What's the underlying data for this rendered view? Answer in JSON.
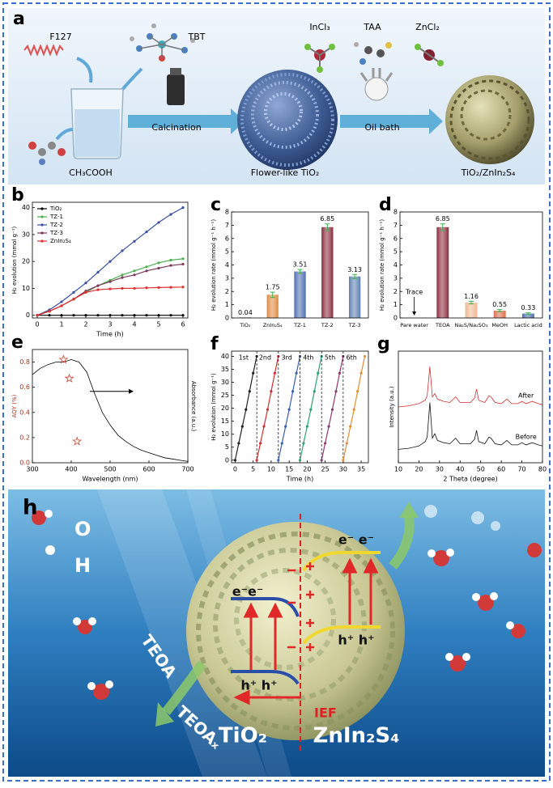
{
  "panel_a": {
    "label": "a",
    "reagents": [
      "F127",
      "TBT",
      "CH₃COOH",
      "InCl₃",
      "TAA",
      "ZnCl₂"
    ],
    "steps": [
      "Calcination",
      "Oil bath"
    ],
    "products": [
      "Flower-like TiO₂",
      "TiO₂/ZnIn₂S₄"
    ]
  },
  "chart_data": [
    {
      "type": "line",
      "label": "b",
      "x": [
        0,
        0.5,
        1,
        1.5,
        2,
        2.5,
        3,
        3.5,
        4,
        4.5,
        5,
        5.5,
        6
      ],
      "xlim": [
        -0.2,
        6.2
      ],
      "xticks": [
        0,
        1,
        2,
        3,
        4,
        5,
        6
      ],
      "ylim": [
        -1,
        42
      ],
      "yticks": [
        0,
        10,
        20,
        30,
        40
      ],
      "xlabel": "Time (h)",
      "ylabel": "H₂ evolution (mmol g⁻¹)",
      "legend": "upper left",
      "markers": true,
      "series": [
        {
          "name": "TiO₂",
          "color": "#000000",
          "values": [
            0,
            0,
            0,
            0,
            0,
            0,
            0,
            0,
            0,
            0,
            0,
            0,
            0
          ]
        },
        {
          "name": "TZ-1",
          "color": "#4cb050",
          "values": [
            0,
            1.5,
            3.5,
            6,
            8.5,
            11,
            13,
            15,
            16.5,
            18,
            19.5,
            20.5,
            21
          ]
        },
        {
          "name": "TZ-2",
          "color": "#3b4fa0",
          "values": [
            0,
            2,
            5,
            8.5,
            12,
            16,
            20,
            24,
            27.5,
            31,
            34.5,
            37.5,
            40
          ]
        },
        {
          "name": "TZ-3",
          "color": "#7a3b5a",
          "values": [
            0,
            1.5,
            3.5,
            6,
            9,
            11,
            12.5,
            14,
            15,
            16.5,
            17.5,
            18.5,
            19
          ]
        },
        {
          "name": "ZnIn₂S₄",
          "color": "#e03030",
          "values": [
            0,
            1.5,
            3.5,
            6,
            8.5,
            9.5,
            9.8,
            10,
            10,
            10.2,
            10.3,
            10.4,
            10.5
          ]
        }
      ]
    },
    {
      "type": "bar",
      "label": "c",
      "categories": [
        "TiO₂",
        "ZnIn₂S₄",
        "TZ-1",
        "TZ-2",
        "TZ-3"
      ],
      "values": [
        0.04,
        1.75,
        3.51,
        6.85,
        3.13
      ],
      "errors": [
        null,
        0.2,
        0.15,
        0.25,
        0.15
      ],
      "colors": [
        "#888888",
        "#e08a40",
        "#4c6db0",
        "#8a2c3c",
        "#5b7fae"
      ],
      "error_color": "#3cb34a",
      "ylim": [
        0,
        8
      ],
      "yticks": [
        0,
        1,
        2,
        3,
        4,
        5,
        6,
        7,
        8
      ],
      "ylabel": "H₂ evolution rate (mmol g⁻¹ h⁻¹)"
    },
    {
      "type": "bar",
      "label": "d",
      "categories": [
        "Pare water",
        "TEOA",
        "Na₂S/Na₂SO₃",
        "MeOH",
        "Lactic acid"
      ],
      "values": [
        null,
        6.85,
        1.16,
        0.55,
        0.33
      ],
      "errors": [
        null,
        0.25,
        0.1,
        0.08,
        0.06
      ],
      "colors": [
        "#888888",
        "#8a2c3c",
        "#f0b890",
        "#e06a4a",
        "#4c6db0"
      ],
      "error_color": "#3cb34a",
      "annotation": "Trace",
      "ylim": [
        0,
        8
      ],
      "yticks": [
        0,
        1,
        2,
        3,
        4,
        5,
        6,
        7,
        8
      ],
      "ylabel": "H₂ evolution rate (mmol g⁻¹ h⁻¹)"
    },
    {
      "type": "line",
      "label": "e",
      "xlim": [
        300,
        700
      ],
      "xticks": [
        300,
        400,
        500,
        600,
        700
      ],
      "ylim": [
        0,
        0.9
      ],
      "yticks": [
        {
          "value": 0,
          "label": "0.0"
        },
        0.2,
        0.4,
        0.6,
        0.8
      ],
      "y2lim": [
        0,
        0.9
      ],
      "xlabel": "Wavelength (nm)",
      "ylabel": "AQY (%)",
      "y2label": "Absorbance (a.u.)",
      "y_color": "#b03020",
      "series": [
        {
          "axis": "y2",
          "color": "#000000",
          "x": [
            300,
            320,
            340,
            360,
            380,
            400,
            420,
            440,
            460,
            480,
            500,
            520,
            540,
            560,
            580,
            600,
            620,
            640,
            660,
            680,
            700
          ],
          "values": [
            0.7,
            0.75,
            0.78,
            0.8,
            0.8,
            0.82,
            0.8,
            0.72,
            0.55,
            0.4,
            0.3,
            0.22,
            0.17,
            0.13,
            0.1,
            0.08,
            0.06,
            0.04,
            0.03,
            0.02,
            0.01
          ]
        },
        {
          "color": "#d04030",
          "mark": "star",
          "x": [
            380,
            395,
            415
          ],
          "values": [
            0.82,
            0.67,
            0.17
          ]
        }
      ]
    },
    {
      "type": "line",
      "label": "f",
      "xlim": [
        -1,
        37
      ],
      "xticks": [
        0,
        5,
        10,
        15,
        20,
        25,
        30,
        35
      ],
      "ylim": [
        -1,
        42
      ],
      "yticks": [
        0,
        5,
        10,
        15,
        20,
        25,
        30,
        35,
        40
      ],
      "xlabel": "Time (h)",
      "ylabel": "H₂ evolution (mmol g⁻¹)",
      "markers": true,
      "label_placement": "top",
      "series": [
        {
          "name": "1st",
          "color": "#222222",
          "x": [
            0,
            1,
            2,
            3,
            4,
            5,
            6
          ],
          "values": [
            0,
            6.5,
            13,
            19.5,
            26.5,
            33.5,
            40
          ]
        },
        {
          "name": "2nd",
          "color": "#d03030",
          "x": [
            6,
            7,
            8,
            9,
            10,
            11,
            12
          ],
          "values": [
            0,
            6.5,
            13,
            19.5,
            26.5,
            33.5,
            40
          ]
        },
        {
          "name": "3rd",
          "color": "#3a5fb0",
          "x": [
            12,
            13,
            14,
            15,
            16,
            17,
            18
          ],
          "values": [
            0,
            6.5,
            13,
            19.5,
            26.5,
            33.5,
            40
          ]
        },
        {
          "name": "4th",
          "color": "#2fa070",
          "x": [
            18,
            19,
            20,
            21,
            22,
            23,
            24
          ],
          "values": [
            0,
            6.5,
            13,
            19.5,
            26.5,
            33.5,
            40
          ]
        },
        {
          "name": "5th",
          "color": "#8a3a70",
          "x": [
            24,
            25,
            26,
            27,
            28,
            29,
            30
          ],
          "values": [
            0,
            6.5,
            13,
            19.5,
            26.5,
            33.5,
            40
          ]
        },
        {
          "name": "6th",
          "color": "#e09030",
          "x": [
            30,
            31,
            32,
            33,
            34,
            35,
            36
          ],
          "values": [
            0,
            6.5,
            13,
            19.5,
            26.5,
            33.5,
            40
          ]
        }
      ]
    },
    {
      "type": "line",
      "label": "g",
      "x": [
        10,
        15,
        20,
        23,
        24,
        25.3,
        26.5,
        27.7,
        29,
        32,
        35,
        37.8,
        40,
        45,
        47,
        48,
        49,
        52,
        54,
        55,
        57,
        60,
        62.7,
        65,
        68,
        70,
        72,
        75,
        78,
        80
      ],
      "xlim": [
        10,
        80
      ],
      "xticks": [
        10,
        20,
        30,
        40,
        50,
        60,
        70,
        80
      ],
      "ylim": [
        0,
        10
      ],
      "xlabel": "2 Theta (degree)",
      "ylabel": "Intensity (a.u.)",
      "label_placement": "end",
      "series": [
        {
          "name": "After",
          "color": "#d03030",
          "values": [
            5.0,
            5.1,
            5.3,
            5.6,
            6.0,
            8.6,
            5.9,
            6.2,
            5.7,
            5.5,
            5.4,
            5.9,
            5.4,
            5.4,
            5.8,
            6.6,
            5.6,
            5.4,
            6.0,
            5.9,
            5.4,
            5.3,
            5.7,
            5.3,
            5.3,
            5.5,
            5.3,
            5.5,
            5.3,
            5.2
          ]
        },
        {
          "name": "Before",
          "color": "#111111",
          "values": [
            1.2,
            1.3,
            1.5,
            1.9,
            2.3,
            5.4,
            2.2,
            2.6,
            2.0,
            1.8,
            1.7,
            2.2,
            1.7,
            1.7,
            2.1,
            2.9,
            1.9,
            1.7,
            2.3,
            2.2,
            1.7,
            1.6,
            2.0,
            1.6,
            1.6,
            1.8,
            1.6,
            1.8,
            1.6,
            1.5
          ]
        }
      ]
    }
  ],
  "panel_h": {
    "label": "h",
    "legend": [
      "O",
      "H"
    ],
    "reagents": [
      "TEOA",
      "TEOAₓ"
    ],
    "materials": [
      "TiO₂",
      "ZnIn₂S₄"
    ],
    "field": "IEF",
    "electrons": [
      "e⁻e⁻",
      "e⁻ e⁻"
    ],
    "holes": [
      "h⁺ h⁺",
      "h⁺ h⁺"
    ]
  }
}
